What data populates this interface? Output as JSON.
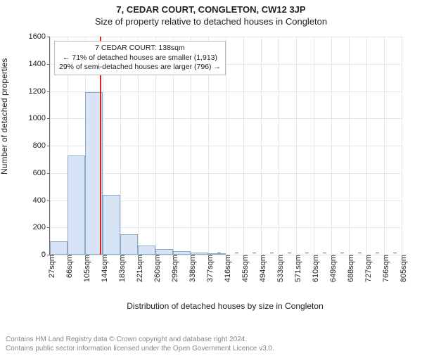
{
  "title_main": "7, CEDAR COURT, CONGLETON, CW12 3JP",
  "title_sub": "Size of property relative to detached houses in Congleton",
  "chart": {
    "type": "histogram",
    "y_label": "Number of detached properties",
    "x_label": "Distribution of detached houses by size in Congleton",
    "ylim": [
      0,
      1600
    ],
    "yticks": [
      0,
      200,
      400,
      600,
      800,
      1000,
      1200,
      1400,
      1600
    ],
    "xticks_labels": [
      "27sqm",
      "66sqm",
      "105sqm",
      "144sqm",
      "183sqm",
      "221sqm",
      "260sqm",
      "299sqm",
      "338sqm",
      "377sqm",
      "416sqm",
      "455sqm",
      "494sqm",
      "533sqm",
      "571sqm",
      "610sqm",
      "649sqm",
      "688sqm",
      "727sqm",
      "766sqm",
      "805sqm"
    ],
    "bars": [
      100,
      730,
      1190,
      440,
      150,
      65,
      40,
      25,
      16,
      8,
      0,
      0,
      0,
      0,
      0,
      0,
      0,
      0,
      0,
      0
    ],
    "bar_fill": "#d6e4f5",
    "bar_border": "#8aa8c8",
    "grid_color": "#e5e5e5",
    "background_color": "#ffffff",
    "bar_width_ratio": 1.0,
    "marker_value_sqm": 138,
    "marker_color": "#d62728",
    "annotation": {
      "line1": "7 CEDAR COURT: 138sqm",
      "line2": "← 71% of detached houses are smaller (1,913)",
      "line3": "29% of semi-detached houses are larger (796) →"
    }
  },
  "footer_line1": "Contains HM Land Registry data © Crown copyright and database right 2024.",
  "footer_line2": "Contains public sector information licensed under the Open Government Licence v3.0."
}
